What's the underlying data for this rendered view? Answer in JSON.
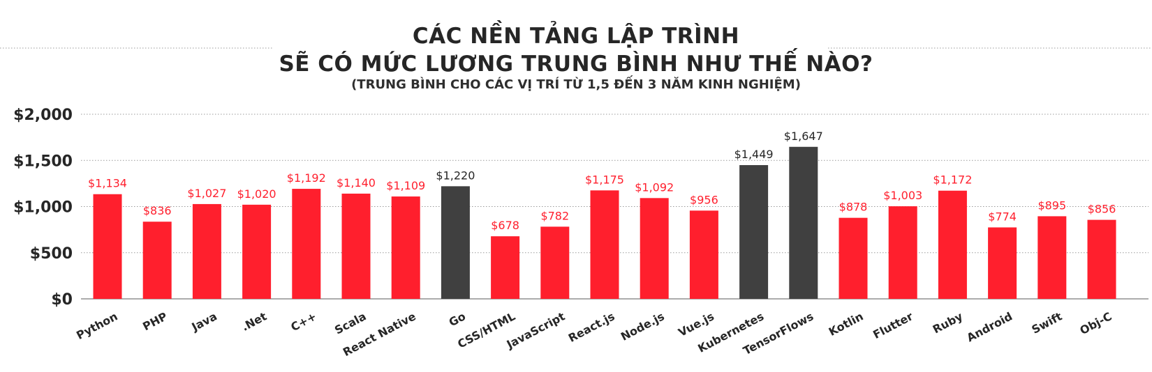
{
  "chart_data": {
    "type": "bar",
    "title_lines": [
      "CÁC NỀN TẢNG LẬP TRÌNH",
      "SẼ CÓ MỨC LƯƠNG TRUNG BÌNH NHƯ THẾ NÀO?"
    ],
    "subtitle": "(TRUNG BÌNH CHO CÁC VỊ TRÍ TỪ 1,5 ĐẾN 3 NĂM KINH NGHIỆM)",
    "categories": [
      "Python",
      "PHP",
      "Java",
      ".Net",
      "C++",
      "Scala",
      "React Native",
      "Go",
      "CSS/HTML",
      "JavaScript",
      "React.js",
      "Node.js",
      "Vue.js",
      "Kubernetes",
      "TensorFlows",
      "Kotlin",
      "Flutter",
      "Ruby",
      "Android",
      "Swift",
      "Obj-C"
    ],
    "values": [
      1134,
      836,
      1027,
      1020,
      1192,
      1140,
      1109,
      1220,
      678,
      782,
      1175,
      1092,
      956,
      1449,
      1647,
      878,
      1003,
      1172,
      774,
      895,
      856
    ],
    "value_labels": [
      "$1,134",
      "$836",
      "$1,027",
      "$1,020",
      "$1,192",
      "$1,140",
      "$1,109",
      "$1,220",
      "$678",
      "$782",
      "$1,175",
      "$1,092",
      "$956",
      "$1,449",
      "$1,647",
      "$878",
      "$1,003",
      "$1,172",
      "$774",
      "$895",
      "$856"
    ],
    "highlighted": [
      "Go",
      "Kubernetes",
      "TensorFlows"
    ],
    "y_ticks": [
      0,
      500,
      1000,
      1500,
      2000
    ],
    "y_tick_labels": [
      "$0",
      "$500",
      "$1,000",
      "$1,500",
      "$2,000"
    ],
    "ylim": [
      0,
      2000
    ],
    "grid": true,
    "colors": {
      "bar": "#ff1f2d",
      "bar_highlight": "#404040",
      "label": "#ff1f2d",
      "label_highlight": "#262626",
      "grid": "#9a9a9a",
      "text": "#262626"
    }
  }
}
